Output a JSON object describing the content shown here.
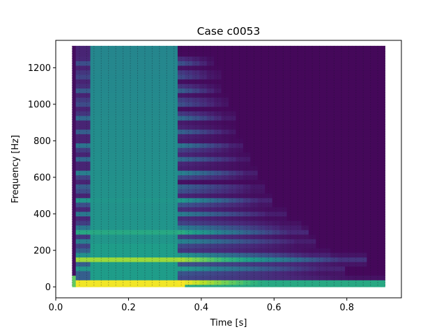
{
  "chart_data": {
    "type": "heatmap",
    "title": "Case c0053",
    "xlabel": "Time [s]",
    "ylabel": "Frequency [Hz]",
    "xlim": [
      0.0,
      0.95
    ],
    "ylim": [
      -60,
      1350
    ],
    "xticks": [
      0.0,
      0.2,
      0.4,
      0.6,
      0.8
    ],
    "xtick_labels": [
      "0.0",
      "0.2",
      "0.4",
      "0.6",
      "0.8"
    ],
    "yticks": [
      0,
      200,
      400,
      600,
      800,
      1000,
      1200
    ],
    "ytick_labels": [
      "0",
      "200",
      "400",
      "600",
      "800",
      "1000",
      "1200"
    ],
    "grid": false,
    "colormap": "viridis",
    "data_extent": {
      "t_min": 0.045,
      "t_max": 0.905,
      "f_min": 0,
      "f_max": 1320
    },
    "time_columns": [
      0.045,
      0.065,
      0.085,
      0.105,
      0.125,
      0.145,
      0.165,
      0.185,
      0.205,
      0.225,
      0.245,
      0.265,
      0.285,
      0.305,
      0.325,
      0.345,
      0.365,
      0.385,
      0.405,
      0.425,
      0.445,
      0.465,
      0.485,
      0.505,
      0.525,
      0.545,
      0.565,
      0.585,
      0.605,
      0.625,
      0.645,
      0.665,
      0.685,
      0.705,
      0.725,
      0.745,
      0.765,
      0.785,
      0.805,
      0.825,
      0.845,
      0.865,
      0.885,
      0.905
    ],
    "frequency_rows": [
      0,
      25,
      50,
      75,
      100,
      125,
      150,
      175,
      200,
      225,
      250,
      275,
      300,
      325,
      350,
      375,
      400,
      425,
      450,
      475,
      500,
      525,
      550,
      575,
      600,
      625,
      650,
      675,
      700,
      725,
      750,
      775,
      800,
      825,
      850,
      875,
      900,
      925,
      950,
      975,
      1000,
      1025,
      1050,
      1075,
      1100,
      1125,
      1150,
      1175,
      1200,
      1225,
      1250,
      1275,
      1300,
      1320
    ],
    "harmonic_bands": [
      {
        "frequency": 22,
        "t_end": 0.905,
        "peak_level": 1.0
      },
      {
        "frequency": 150,
        "t_end": 0.86,
        "peak_level": 0.85
      },
      {
        "frequency": 95,
        "t_end": 0.8,
        "peak_level": 0.55
      },
      {
        "frequency": 175,
        "t_end": 0.76,
        "peak_level": 0.5
      },
      {
        "frequency": 245,
        "t_end": 0.72,
        "peak_level": 0.45
      },
      {
        "frequency": 300,
        "t_end": 0.7,
        "peak_level": 0.6
      },
      {
        "frequency": 330,
        "t_end": 0.68,
        "peak_level": 0.42
      },
      {
        "frequency": 400,
        "t_end": 0.63,
        "peak_level": 0.4
      },
      {
        "frequency": 470,
        "t_end": 0.6,
        "peak_level": 0.55
      },
      {
        "frequency": 540,
        "t_end": 0.58,
        "peak_level": 0.36
      },
      {
        "frequency": 620,
        "t_end": 0.56,
        "peak_level": 0.45
      },
      {
        "frequency": 700,
        "t_end": 0.54,
        "peak_level": 0.33
      },
      {
        "frequency": 770,
        "t_end": 0.52,
        "peak_level": 0.4
      },
      {
        "frequency": 850,
        "t_end": 0.5,
        "peak_level": 0.3
      },
      {
        "frequency": 930,
        "t_end": 0.49,
        "peak_level": 0.35
      },
      {
        "frequency": 1010,
        "t_end": 0.48,
        "peak_level": 0.28
      },
      {
        "frequency": 1080,
        "t_end": 0.46,
        "peak_level": 0.3
      },
      {
        "frequency": 1160,
        "t_end": 0.45,
        "peak_level": 0.25
      },
      {
        "frequency": 1230,
        "t_end": 0.44,
        "peak_level": 0.25
      }
    ],
    "broadband_window": {
      "t_start": 0.1,
      "t_end": 0.34
    },
    "quiet_gap": {
      "t_start": 0.065,
      "t_end": 0.1
    }
  }
}
